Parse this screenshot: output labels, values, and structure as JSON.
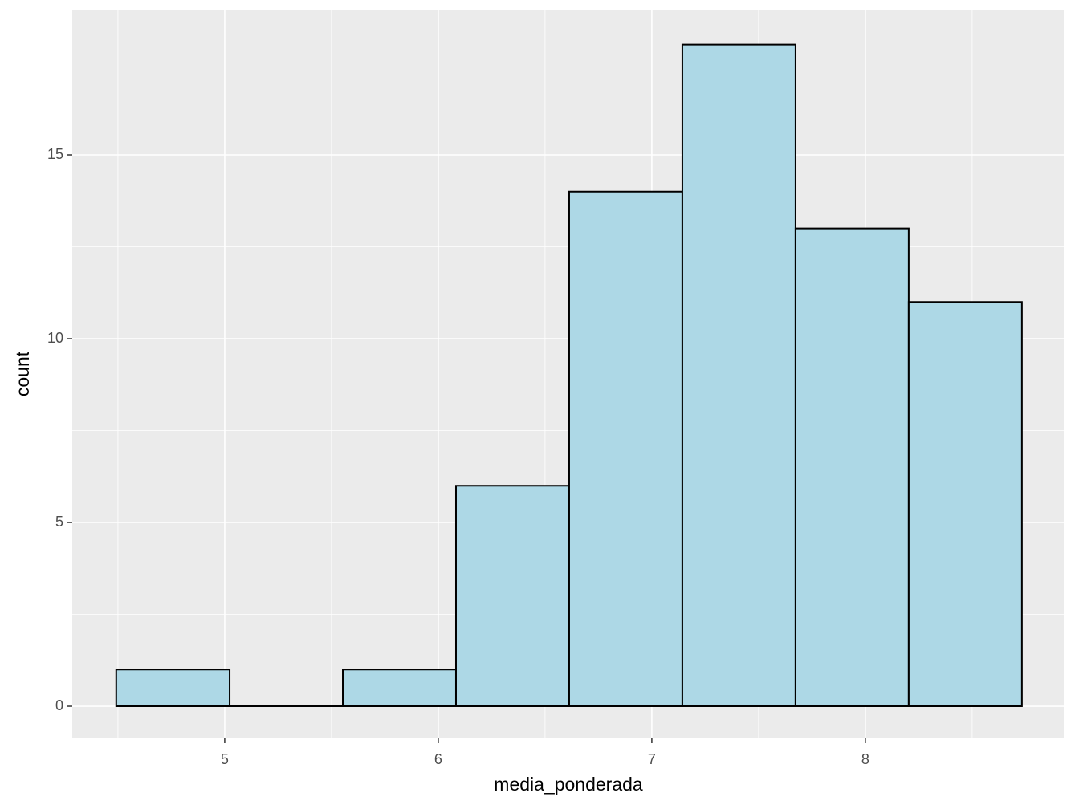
{
  "chart_data": {
    "type": "histogram",
    "x_label": "media_ponderada",
    "y_label": "count",
    "bins": [
      4.492,
      5.023,
      5.553,
      6.083,
      6.613,
      7.143,
      7.673,
      8.203,
      8.733
    ],
    "values": [
      1,
      0,
      1,
      6,
      14,
      18,
      13,
      11
    ],
    "color": "#add8e6",
    "edge_color": "#000000",
    "xlim": [
      4.286,
      8.929
    ],
    "ylim": [
      -0.873,
      18.952
    ],
    "xticks": [
      5,
      6,
      7,
      8
    ],
    "yticks": [
      0,
      5,
      10,
      15
    ],
    "x_minor_grid": [
      4.5,
      5.5,
      6.5,
      7.5,
      8.5
    ],
    "y_minor_grid": [
      2.5,
      7.5,
      12.5,
      17.5
    ],
    "grid": true
  }
}
